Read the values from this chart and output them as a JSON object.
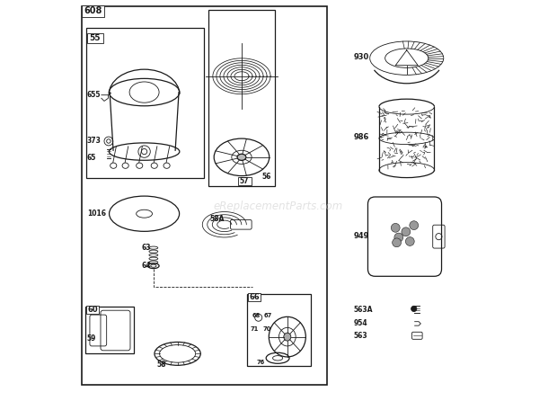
{
  "bg_color": "#ffffff",
  "line_color": "#1a1a1a",
  "watermark": "eReplacementParts.com"
}
